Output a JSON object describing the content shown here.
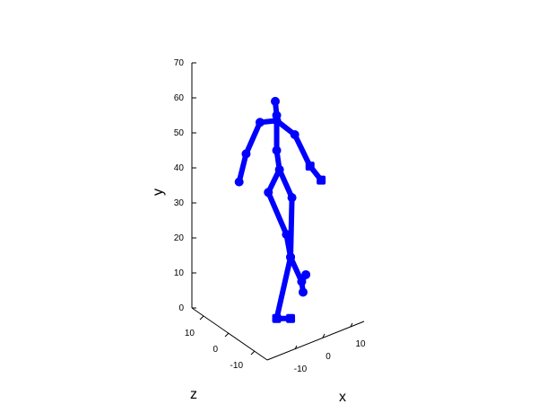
{
  "chart_data": {
    "type": "3d-line",
    "title": "",
    "xlabel": "x",
    "ylabel": "y",
    "zlabel": "z",
    "x_ticks": [
      "-10",
      "0",
      "10"
    ],
    "y_ticks": [
      "0",
      "10",
      "20",
      "30",
      "40",
      "50",
      "60",
      "70"
    ],
    "z_ticks": [
      "-10",
      "0",
      "10"
    ],
    "ylim": [
      0,
      70
    ],
    "series_color": "#0000ff",
    "joints": [
      {
        "name": "head",
        "x": 0,
        "y": 59,
        "z": 0
      },
      {
        "name": "neck",
        "x": 0.5,
        "y": 55,
        "z": 0
      },
      {
        "name": "shoulder-center",
        "x": 0.5,
        "y": 53.5,
        "z": 0
      },
      {
        "name": "shoulder-left",
        "x": -5.5,
        "y": 53,
        "z": 0
      },
      {
        "name": "elbow-left",
        "x": -10.5,
        "y": 44,
        "z": 0
      },
      {
        "name": "hand-left",
        "x": -13,
        "y": 36,
        "z": 0
      },
      {
        "name": "shoulder-right",
        "x": 7,
        "y": 49.5,
        "z": 0
      },
      {
        "name": "elbow-right",
        "x": 12.5,
        "y": 40.5,
        "z": 0
      },
      {
        "name": "hand-right",
        "x": 16.5,
        "y": 36.5,
        "z": 0
      },
      {
        "name": "spine",
        "x": 0.5,
        "y": 45,
        "z": 0
      },
      {
        "name": "hip-center",
        "x": 1.5,
        "y": 39.5,
        "z": 0
      },
      {
        "name": "hip-left",
        "x": -2.5,
        "y": 33,
        "z": 0
      },
      {
        "name": "knee-left",
        "x": 4,
        "y": 21,
        "z": 0
      },
      {
        "name": "ankle-left",
        "x": 5.5,
        "y": 14.5,
        "z": 0
      },
      {
        "name": "foot-left",
        "x": 0.5,
        "y": -3,
        "z": 0
      },
      {
        "name": "toe-left",
        "x": 5.5,
        "y": -3,
        "z": 0
      },
      {
        "name": "hip-right",
        "x": 6,
        "y": 31.5,
        "z": 0
      },
      {
        "name": "knee-right",
        "x": 5.5,
        "y": 14.5,
        "z": 0
      },
      {
        "name": "ankle-right",
        "x": 9.5,
        "y": 7.5,
        "z": 0
      },
      {
        "name": "foot-right",
        "x": 11,
        "y": 9.5,
        "z": 0
      },
      {
        "name": "toe-right",
        "x": 10,
        "y": 4.5,
        "z": 0
      }
    ],
    "bones": [
      [
        "head",
        "neck"
      ],
      [
        "neck",
        "shoulder-center"
      ],
      [
        "shoulder-center",
        "shoulder-left"
      ],
      [
        "shoulder-left",
        "elbow-left"
      ],
      [
        "elbow-left",
        "hand-left"
      ],
      [
        "shoulder-center",
        "shoulder-right"
      ],
      [
        "shoulder-right",
        "elbow-right"
      ],
      [
        "elbow-right",
        "hand-right"
      ],
      [
        "shoulder-center",
        "spine"
      ],
      [
        "spine",
        "hip-center"
      ],
      [
        "hip-center",
        "hip-left"
      ],
      [
        "hip-left",
        "knee-left"
      ],
      [
        "knee-left",
        "ankle-left"
      ],
      [
        "ankle-left",
        "foot-left"
      ],
      [
        "foot-left",
        "toe-left"
      ],
      [
        "hip-center",
        "hip-right"
      ],
      [
        "hip-right",
        "knee-right"
      ],
      [
        "knee-right",
        "ankle-right"
      ],
      [
        "ankle-right",
        "foot-right"
      ],
      [
        "ankle-right",
        "toe-right"
      ]
    ]
  }
}
